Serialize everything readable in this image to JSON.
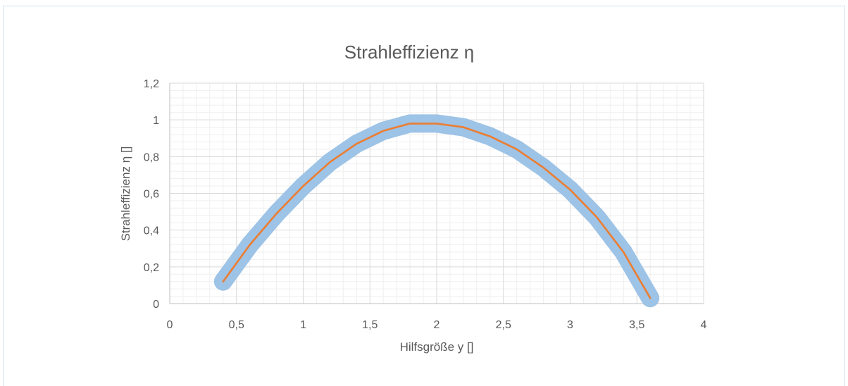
{
  "chart_data": {
    "type": "line",
    "title": "Strahleffizienz η",
    "xlabel": "Hilfsgröße y []",
    "ylabel": "Strahleffizienz η []",
    "xlim": [
      0,
      4
    ],
    "ylim": [
      0,
      1.2
    ],
    "x_ticks": [
      "0",
      "0,5",
      "1",
      "1,5",
      "2",
      "2,5",
      "3",
      "3,5",
      "4"
    ],
    "y_ticks": [
      "0",
      "0,2",
      "0,4",
      "0,6",
      "0,8",
      "1",
      "1,2"
    ],
    "grid": "major and minor",
    "series": [
      {
        "color": "#9dc3e6",
        "style": "thick band",
        "x": [
          0.4,
          0.6,
          0.8,
          1.0,
          1.2,
          1.4,
          1.6,
          1.8,
          2.0,
          2.2,
          2.4,
          2.6,
          2.8,
          3.0,
          3.2,
          3.4,
          3.6
        ],
        "y": [
          0.12,
          0.32,
          0.49,
          0.64,
          0.77,
          0.87,
          0.94,
          0.98,
          0.98,
          0.96,
          0.91,
          0.84,
          0.74,
          0.62,
          0.47,
          0.28,
          0.03
        ]
      },
      {
        "color": "#ed7d31",
        "style": "thin line",
        "x": [
          0.4,
          0.6,
          0.8,
          1.0,
          1.2,
          1.4,
          1.6,
          1.8,
          2.0,
          2.2,
          2.4,
          2.6,
          2.8,
          3.0,
          3.2,
          3.4,
          3.6
        ],
        "y": [
          0.12,
          0.32,
          0.49,
          0.64,
          0.77,
          0.87,
          0.94,
          0.98,
          0.98,
          0.96,
          0.91,
          0.84,
          0.74,
          0.62,
          0.47,
          0.28,
          0.03
        ]
      }
    ]
  }
}
